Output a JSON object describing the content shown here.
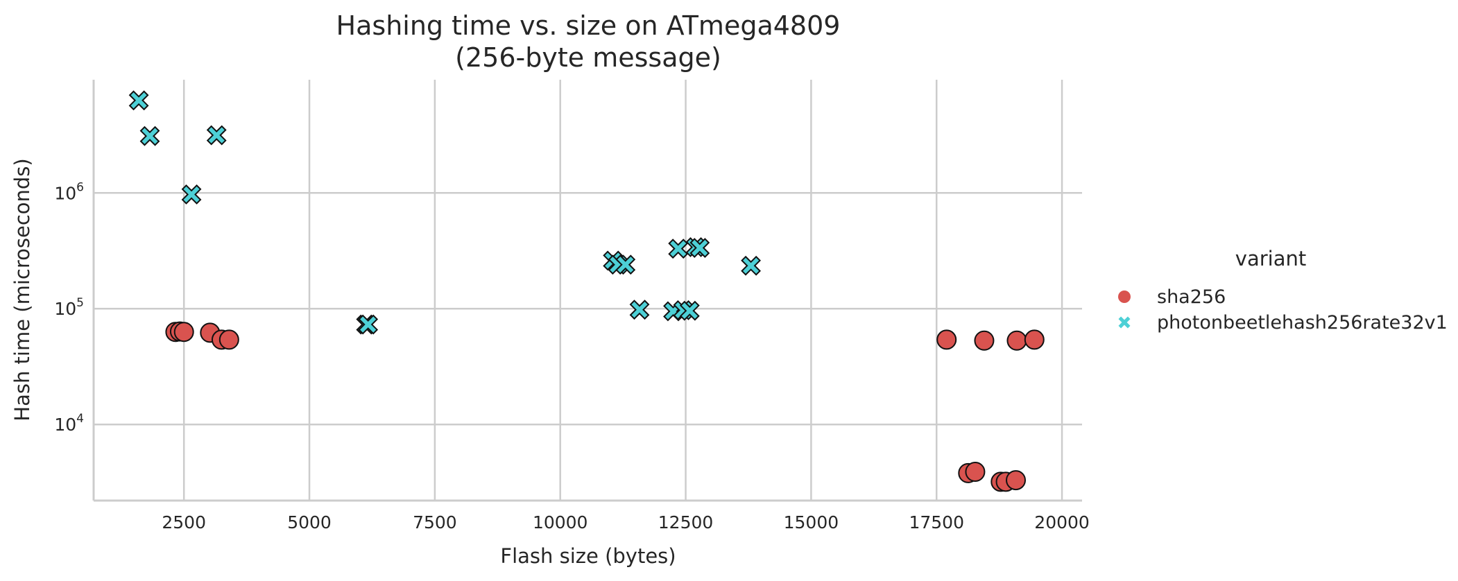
{
  "chart_data": {
    "type": "scatter",
    "title": "Hashing time vs. size on ATmega4809",
    "subtitle": "(256-byte message)",
    "xlabel": "Flash size (bytes)",
    "ylabel": "Hash time (microseconds)",
    "x_ticks": [
      2500,
      5000,
      7500,
      10000,
      12500,
      15000,
      17500,
      20000
    ],
    "y_ticks": [
      {
        "value": 10000,
        "base": "10",
        "exp": "4"
      },
      {
        "value": 100000,
        "base": "10",
        "exp": "5"
      },
      {
        "value": 1000000,
        "base": "10",
        "exp": "6"
      }
    ],
    "xlim": [
      700,
      20400
    ],
    "ylim": [
      2200,
      9500000
    ],
    "yscale": "log",
    "grid": true,
    "legend": {
      "title": "variant",
      "placement": "right"
    },
    "series": [
      {
        "name": "sha256",
        "marker": "circle",
        "color": "#d9534f",
        "points": [
          {
            "x": 2330,
            "y": 63000
          },
          {
            "x": 2420,
            "y": 63500
          },
          {
            "x": 2500,
            "y": 63000
          },
          {
            "x": 3020,
            "y": 62000
          },
          {
            "x": 3250,
            "y": 54000
          },
          {
            "x": 3400,
            "y": 54000
          },
          {
            "x": 17700,
            "y": 54000
          },
          {
            "x": 18450,
            "y": 53000
          },
          {
            "x": 19100,
            "y": 53000
          },
          {
            "x": 19450,
            "y": 54000
          },
          {
            "x": 18130,
            "y": 3800
          },
          {
            "x": 18270,
            "y": 3900
          },
          {
            "x": 18780,
            "y": 3200
          },
          {
            "x": 18880,
            "y": 3200
          },
          {
            "x": 19080,
            "y": 3300
          }
        ]
      },
      {
        "name": "photonbeetlehash256rate32v1",
        "marker": "x",
        "color": "#4dd0d6",
        "points": [
          {
            "x": 1600,
            "y": 6300000
          },
          {
            "x": 1820,
            "y": 3100000
          },
          {
            "x": 3150,
            "y": 3150000
          },
          {
            "x": 2650,
            "y": 970000
          },
          {
            "x": 6130,
            "y": 73000
          },
          {
            "x": 6170,
            "y": 73000
          },
          {
            "x": 11050,
            "y": 260000
          },
          {
            "x": 11150,
            "y": 240000
          },
          {
            "x": 11300,
            "y": 240000
          },
          {
            "x": 11580,
            "y": 98000
          },
          {
            "x": 12250,
            "y": 95000
          },
          {
            "x": 12450,
            "y": 97000
          },
          {
            "x": 12580,
            "y": 96000
          },
          {
            "x": 12350,
            "y": 330000
          },
          {
            "x": 12700,
            "y": 340000
          },
          {
            "x": 12780,
            "y": 335000
          },
          {
            "x": 13800,
            "y": 235000
          }
        ]
      }
    ]
  }
}
